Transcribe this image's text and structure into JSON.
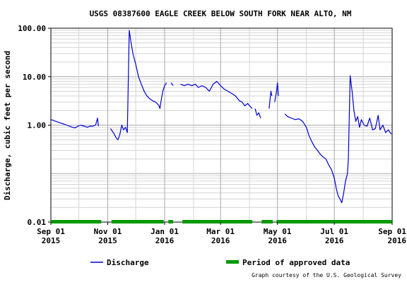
{
  "chart_data": {
    "type": "line",
    "title": "USGS 08387600 EAGLE CREEK BELOW SOUTH FORK NEAR ALTO, NM",
    "ylabel": "Discharge, cubic feet per second",
    "xlabel": "",
    "y_scale": "log",
    "ylim": [
      0.01,
      100
    ],
    "y_ticks": [
      "0.01",
      "1.00",
      "10.00",
      "100.00"
    ],
    "x_ticks": [
      {
        "date": "2015-09-01",
        "line1": "Sep 01",
        "line2": "2015"
      },
      {
        "date": "2015-11-01",
        "line1": "Nov 01",
        "line2": "2015"
      },
      {
        "date": "2016-01-01",
        "line1": "Jan 01",
        "line2": "2016"
      },
      {
        "date": "2016-03-01",
        "line1": "Mar 01",
        "line2": "2016"
      },
      {
        "date": "2016-05-01",
        "line1": "May 01",
        "line2": "2016"
      },
      {
        "date": "2016-07-01",
        "line1": "Jul 01",
        "line2": "2016"
      },
      {
        "date": "2016-09-01",
        "line1": "Sep 01",
        "line2": "2016"
      }
    ],
    "xlim": [
      "2015-09-01",
      "2016-09-01"
    ],
    "grid": true,
    "legend_placement": "bottom",
    "series": [
      {
        "name": "Discharge",
        "color": "#0000cc",
        "segments": [
          [
            [
              "2015-09-01",
              1.3
            ],
            [
              "2015-09-04",
              1.25
            ],
            [
              "2015-09-06",
              1.2
            ],
            [
              "2015-09-09",
              1.15
            ],
            [
              "2015-09-12",
              1.1
            ],
            [
              "2015-09-15",
              1.05
            ],
            [
              "2015-09-18",
              1.0
            ],
            [
              "2015-09-21",
              0.95
            ],
            [
              "2015-09-24",
              0.9
            ],
            [
              "2015-09-27",
              0.88
            ],
            [
              "2015-09-30",
              0.95
            ],
            [
              "2015-10-03",
              1.0
            ],
            [
              "2015-10-07",
              0.95
            ],
            [
              "2015-10-10",
              0.9
            ],
            [
              "2015-10-13",
              0.95
            ],
            [
              "2015-10-16",
              0.95
            ],
            [
              "2015-10-19",
              1.0
            ],
            [
              "2015-10-21",
              1.4
            ],
            [
              "2015-10-22",
              0.95
            ]
          ],
          [
            [
              "2015-11-04",
              0.85
            ],
            [
              "2015-11-07",
              0.7
            ],
            [
              "2015-11-10",
              0.55
            ],
            [
              "2015-11-12",
              0.5
            ],
            [
              "2015-11-14",
              0.65
            ],
            [
              "2015-11-16",
              1.0
            ],
            [
              "2015-11-18",
              0.8
            ],
            [
              "2015-11-20",
              0.9
            ],
            [
              "2015-11-22",
              0.7
            ],
            [
              "2015-11-24",
              90
            ],
            [
              "2015-11-26",
              50
            ],
            [
              "2015-11-28",
              30
            ],
            [
              "2015-12-01",
              18
            ],
            [
              "2015-12-04",
              10
            ],
            [
              "2015-12-07",
              7
            ],
            [
              "2015-12-10",
              5
            ],
            [
              "2015-12-13",
              4
            ],
            [
              "2015-12-16",
              3.5
            ],
            [
              "2015-12-19",
              3.2
            ],
            [
              "2015-12-22",
              3.0
            ],
            [
              "2015-12-24",
              2.8
            ],
            [
              "2015-12-26",
              2.5
            ],
            [
              "2015-12-27",
              2.2
            ],
            [
              "2015-12-28",
              3.0
            ],
            [
              "2015-12-30",
              5.0
            ],
            [
              "2016-01-01",
              6.5
            ],
            [
              "2016-01-03",
              7.5
            ]
          ],
          [
            [
              "2016-01-08",
              7.5
            ],
            [
              "2016-01-10",
              6.5
            ]
          ],
          [
            [
              "2016-01-18",
              7.0
            ],
            [
              "2016-01-22",
              6.5
            ],
            [
              "2016-01-26",
              7.0
            ],
            [
              "2016-01-30",
              6.5
            ],
            [
              "2016-02-03",
              7.0
            ],
            [
              "2016-02-06",
              6.0
            ],
            [
              "2016-02-10",
              6.5
            ],
            [
              "2016-02-14",
              6.0
            ],
            [
              "2016-02-18",
              5.0
            ],
            [
              "2016-02-22",
              7.0
            ],
            [
              "2016-02-26",
              8.0
            ],
            [
              "2016-03-01",
              6.5
            ],
            [
              "2016-03-05",
              5.5
            ],
            [
              "2016-03-09",
              5.0
            ],
            [
              "2016-03-13",
              4.5
            ],
            [
              "2016-03-17",
              4.0
            ],
            [
              "2016-03-21",
              3.2
            ],
            [
              "2016-03-24",
              3.0
            ],
            [
              "2016-03-27",
              2.5
            ],
            [
              "2016-03-30",
              2.8
            ],
            [
              "2016-04-02",
              2.4
            ],
            [
              "2016-04-04",
              2.2
            ]
          ],
          [
            [
              "2016-04-07",
              2.2
            ],
            [
              "2016-04-09",
              1.6
            ],
            [
              "2016-04-11",
              1.8
            ],
            [
              "2016-04-13",
              1.4
            ]
          ],
          [
            [
              "2016-04-22",
              2.2
            ],
            [
              "2016-04-24",
              5.0
            ],
            [
              "2016-04-25",
              4.0
            ]
          ],
          [
            [
              "2016-04-28",
              3.0
            ],
            [
              "2016-04-30",
              5.0
            ],
            [
              "2016-05-01",
              7.5
            ],
            [
              "2016-05-02",
              4.0
            ]
          ],
          [
            [
              "2016-05-09",
              1.7
            ],
            [
              "2016-05-12",
              1.5
            ],
            [
              "2016-05-16",
              1.4
            ],
            [
              "2016-05-20",
              1.3
            ],
            [
              "2016-05-24",
              1.35
            ],
            [
              "2016-05-28",
              1.2
            ],
            [
              "2016-06-01",
              0.9
            ],
            [
              "2016-06-04",
              0.6
            ],
            [
              "2016-06-07",
              0.45
            ],
            [
              "2016-06-10",
              0.35
            ],
            [
              "2016-06-13",
              0.3
            ],
            [
              "2016-06-16",
              0.25
            ],
            [
              "2016-06-19",
              0.22
            ],
            [
              "2016-06-22",
              0.2
            ],
            [
              "2016-06-25",
              0.15
            ],
            [
              "2016-06-28",
              0.12
            ],
            [
              "2016-07-01",
              0.08
            ],
            [
              "2016-07-03",
              0.05
            ],
            [
              "2016-07-05",
              0.035
            ],
            [
              "2016-07-07",
              0.03
            ],
            [
              "2016-07-09",
              0.025
            ],
            [
              "2016-07-11",
              0.04
            ],
            [
              "2016-07-13",
              0.07
            ],
            [
              "2016-07-15",
              0.1
            ],
            [
              "2016-07-16",
              0.2
            ],
            [
              "2016-07-18",
              10.5
            ],
            [
              "2016-07-20",
              5.0
            ],
            [
              "2016-07-22",
              2.0
            ],
            [
              "2016-07-24",
              1.2
            ],
            [
              "2016-07-26",
              1.5
            ],
            [
              "2016-07-28",
              0.9
            ],
            [
              "2016-07-30",
              1.3
            ],
            [
              "2016-08-02",
              1.0
            ],
            [
              "2016-08-05",
              0.95
            ],
            [
              "2016-08-08",
              1.4
            ],
            [
              "2016-08-11",
              0.8
            ],
            [
              "2016-08-14",
              0.85
            ],
            [
              "2016-08-17",
              1.6
            ],
            [
              "2016-08-19",
              0.8
            ],
            [
              "2016-08-22",
              1.0
            ],
            [
              "2016-08-25",
              0.7
            ],
            [
              "2016-08-28",
              0.8
            ],
            [
              "2016-08-31",
              0.65
            ]
          ]
        ]
      }
    ],
    "approved_periods": [
      [
        "2015-09-01",
        "2015-10-25"
      ],
      [
        "2015-11-05",
        "2015-12-31"
      ],
      [
        "2016-01-05",
        "2016-01-10"
      ],
      [
        "2016-01-20",
        "2016-04-04"
      ],
      [
        "2016-04-14",
        "2016-04-26"
      ],
      [
        "2016-04-30",
        "2016-09-01"
      ]
    ],
    "approved_color": "#009900",
    "legend": {
      "discharge_label": "Discharge",
      "approved_label": "Period of approved data"
    },
    "credit": "Graph courtesy of the U.S. Geological Survey"
  }
}
